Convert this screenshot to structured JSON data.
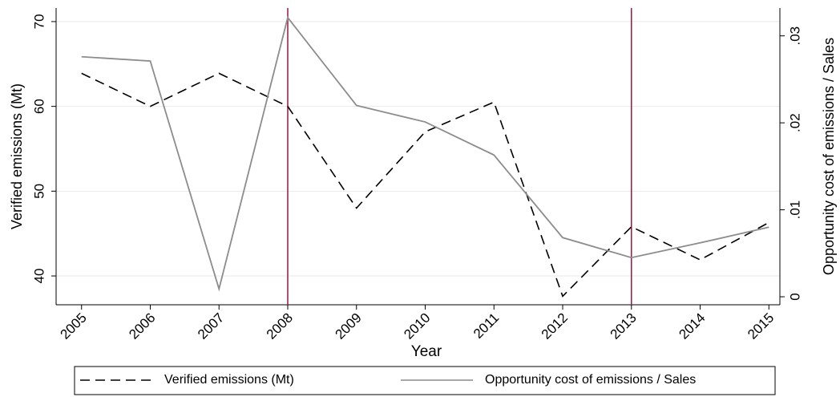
{
  "chart_data": {
    "type": "line",
    "x_label": "Year",
    "y_label": "Verified emissions (Mt)",
    "y2_label": "Opportunity cost of emissions / Sales",
    "x": [
      2005,
      2006,
      2007,
      2008,
      2009,
      2010,
      2011,
      2012,
      2013,
      2014,
      2015
    ],
    "series": [
      {
        "name": "Verified emissions (Mt)",
        "color": "#000000",
        "dash": true,
        "values": [
          63.9,
          60,
          63.9,
          60,
          48,
          57,
          60.5,
          37.6,
          45.8,
          41.9,
          46.3
        ]
      },
      {
        "name": "Opportunity cost of emissions / Sales",
        "color": "#8c8c8c",
        "axis": "y2",
        "values": [
          0.0276,
          0.0271,
          0.0009,
          0.0321,
          0.022,
          0.0201,
          0.0163,
          0.0068,
          0.0045,
          0.0062,
          0.008
        ]
      }
    ],
    "xlim": [
      2004.63,
      2015.16
    ],
    "xticks": [
      2005,
      2006,
      2007,
      2008,
      2009,
      2010,
      2011,
      2012,
      2013,
      2014,
      2015
    ],
    "ylim": [
      36.6,
      71.6
    ],
    "yticks": [
      40,
      50,
      60,
      70
    ],
    "y2lim": [
      -0.00092,
      0.0332
    ],
    "y2ticks": [
      {
        "value": 0,
        "label": "0"
      },
      {
        "value": 0.01,
        "label": ".01"
      },
      {
        "value": 0.02,
        "label": ".02"
      },
      {
        "value": 0.03,
        "label": ".03"
      }
    ],
    "vlines": [
      2008,
      2013
    ],
    "vline_color": "#a0153e",
    "grid": true,
    "legend": "bottom"
  }
}
